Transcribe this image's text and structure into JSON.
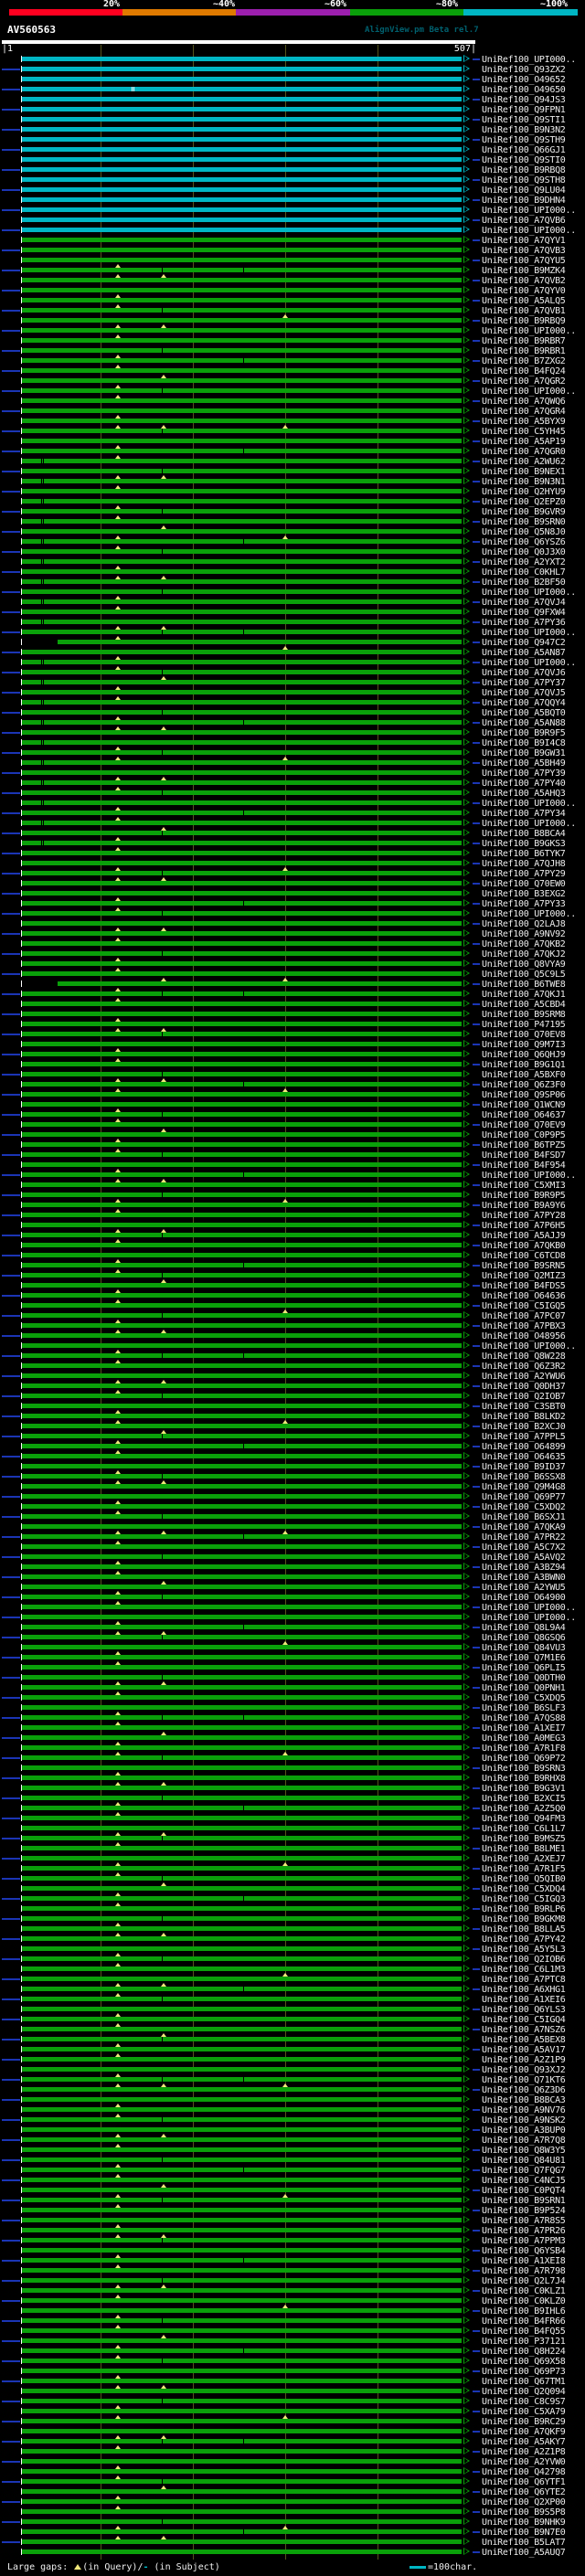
{
  "app": {
    "title": "AlignView.pm Beta rel.7"
  },
  "query": {
    "name": "AV560563",
    "ruler_start": "|1",
    "ruler_end": "507|"
  },
  "identity_scale": {
    "segments": [
      {
        "label": "20%",
        "color": "#ff0020"
      },
      {
        "label": "~40%",
        "color": "#df7a00"
      },
      {
        "label": "~60%",
        "color": "#9c1fae"
      },
      {
        "label": "~80%",
        "color": "#0aa00a"
      },
      {
        "label": "~100%",
        "color": "#00b6c4"
      }
    ]
  },
  "legend": {
    "large_gaps_prefix": "Large gaps: ",
    "query_gap_symbol": "triangle-up",
    "query_gap_text": "(in Query)/",
    "subject_gap_symbol": "-",
    "subject_gap_text": " (in Subject)",
    "scale_bar_text": "=100char."
  },
  "colors": {
    "background": "#000000",
    "query_bar": "#ffffff",
    "grid": "#55551c",
    "connector": "#1b35b4",
    "text": "#f0f0f0",
    "title": "#00606e",
    "gap_marker": "#f0e87a",
    "tier_cyan": "#00b6c4",
    "tier_green": "#0aa00a"
  },
  "hits": {
    "prefix": "UniRef100_",
    "cyan_count": 18,
    "late_start_rows": [
      59,
      93
    ],
    "ids": [
      "UPI000..",
      "Q93ZX2",
      "O49652",
      "O49650",
      "Q94JS3",
      "Q9FPN1",
      "Q9STI1",
      "B9N3N2",
      "Q9STH9",
      "Q66GJ1",
      "Q9STI0",
      "B9RBQ8",
      "Q9STH8",
      "Q9LU04",
      "B9DHN4",
      "UPI000..",
      "A7QVB6",
      "UPI000..",
      "A7QYV1",
      "A7QVB3",
      "A7QYU5",
      "B9MZK4",
      "A7QVB2",
      "A7QYV0",
      "A5ALQ5",
      "A7QVB1",
      "B9RBQ9",
      "UPI000..",
      "B9RBR7",
      "B9RBR1",
      "B7ZXG2",
      "B4FQ24",
      "A7QGR2",
      "UPI000..",
      "A7QWQ6",
      "A7QGR4",
      "A5BYX9",
      "C5YH45",
      "A5AP19",
      "A7QGR0",
      "A2WU62",
      "B9NEX1",
      "B9N3N1",
      "Q2HYU9",
      "Q2EPZ0",
      "B9GVR9",
      "B9SRN0",
      "Q5N8J0",
      "Q6YSZ6",
      "Q0J3X0",
      "A2YXT2",
      "C0KHL7",
      "B2BF50",
      "UPI000..",
      "A7QVJ4",
      "Q9FXW4",
      "A7PY36",
      "UPI000..",
      "Q947C2",
      "A5AN87",
      "UPI000..",
      "A7QVJ6",
      "A7PY37",
      "A7QVJ5",
      "A7QQY4",
      "A5BQT0",
      "A5AN88",
      "B9R9F5",
      "B9I4C8",
      "B9GW31",
      "A5BH49",
      "A7PY39",
      "A7PY40",
      "A5AHQ3",
      "UPI000..",
      "A7PY34",
      "UPI000..",
      "B8BCA4",
      "B9GKS3",
      "B6TYK7",
      "A7QJH8",
      "A7PY29",
      "Q70EW0",
      "B3EXG2",
      "A7PY33",
      "UPI000..",
      "Q2LAJ8",
      "A9NV92",
      "A7QKB2",
      "A7QKJ2",
      "Q8VYA9",
      "Q5C9L5",
      "B6TWE8",
      "A7QKJ1",
      "A5CBD4",
      "B9SRM8",
      "P47195",
      "Q70EV8",
      "Q9M7I3",
      "Q6QHJ9",
      "B9G1Q1",
      "A5BXF0",
      "Q6Z3F0",
      "Q9SP06",
      "Q1WCN9",
      "O64637",
      "Q70EV9",
      "C0P9P5",
      "B6TPZ5",
      "B4FSD7",
      "B4F954",
      "UPI000..",
      "C5XMI3",
      "B9R9P5",
      "B9A9Y6",
      "A7PY28",
      "A7P6H5",
      "A5AJJ9",
      "A7QKB0",
      "C6TCD8",
      "B9SRN5",
      "Q2MIZ3",
      "B4FDS5",
      "O64636",
      "C5IGQ5",
      "A7PC07",
      "A7PBX3",
      "O48956",
      "UPI000..",
      "Q8W228",
      "Q6Z3R2",
      "A2YWU6",
      "Q0DH37",
      "Q2IOB7",
      "C3SBT0",
      "B8LKD2",
      "B2XCJ0",
      "A7PPL5",
      "O64899",
      "O64635",
      "B9ID37",
      "B6SSX8",
      "Q9M4G8",
      "Q69P77",
      "C5XDQ2",
      "B6SXJ1",
      "A7QKA9",
      "A7PR22",
      "A5C7X2",
      "A5AVQ2",
      "A3BZ94",
      "A3BWN0",
      "A2YWU5",
      "O64900",
      "UPI000..",
      "UPI000..",
      "Q8L9A4",
      "Q8GSQ6",
      "Q84VU3",
      "Q7M1E6",
      "Q6PLI5",
      "Q0DTH0",
      "Q0PNH1",
      "C5XDQ5",
      "B6SLF3",
      "A7QS88",
      "A1XEI7",
      "A0MEG3",
      "A7R1F8",
      "Q69P72",
      "B9SRN3",
      "B9RHX8",
      "B9G3V1",
      "B2XCI5",
      "A2Z5Q0",
      "Q94FM3",
      "C6L1L7",
      "B9MSZ5",
      "B8LME1",
      "A2XEJ7",
      "A7R1F5",
      "Q5QIB0",
      "C5XDQ4",
      "C5IGQ3",
      "B9RLP6",
      "B9GKM8",
      "B8LLA5",
      "A7PY42",
      "A5Y5L3",
      "Q2IOB6",
      "C6L1M3",
      "A7PTC8",
      "A6XHG1",
      "A1XEI6",
      "Q6YLS3",
      "C5IGQ4",
      "A7NSZ6",
      "A5BEX8",
      "A5AV17",
      "A2Z1P9",
      "Q93XJ2",
      "Q71KT6",
      "Q6Z3D6",
      "B8BCA3",
      "A9NV76",
      "A9NSK2",
      "A3BUP0",
      "A7R7Q8",
      "Q8W3Y5",
      "Q84U81",
      "Q7FQG7",
      "C4NCJ5",
      "C0PQT4",
      "B9SRN1",
      "B9P524",
      "A7R8S5",
      "A7PR26",
      "A7PPM3",
      "Q6YSB4",
      "A1XEI8",
      "A7R798",
      "Q2L7J4",
      "C0KLZ1",
      "C0KLZ0",
      "B9IHL6",
      "B4FR66",
      "B4FQ55",
      "P37121",
      "Q8H224",
      "Q69X58",
      "Q69P73",
      "Q67TM1",
      "Q2Q094",
      "C8C9S7",
      "C5XA79",
      "B9RC29",
      "A7QKF9",
      "A5AKY7",
      "A2Z1P8",
      "A2YVW0",
      "Q42798",
      "Q6YTF1",
      "Q6YTE2",
      "Q2XP00",
      "B9S5P8",
      "B9NHK9",
      "B9N7E0",
      "B5LAT7",
      "A5AUQ7"
    ]
  }
}
